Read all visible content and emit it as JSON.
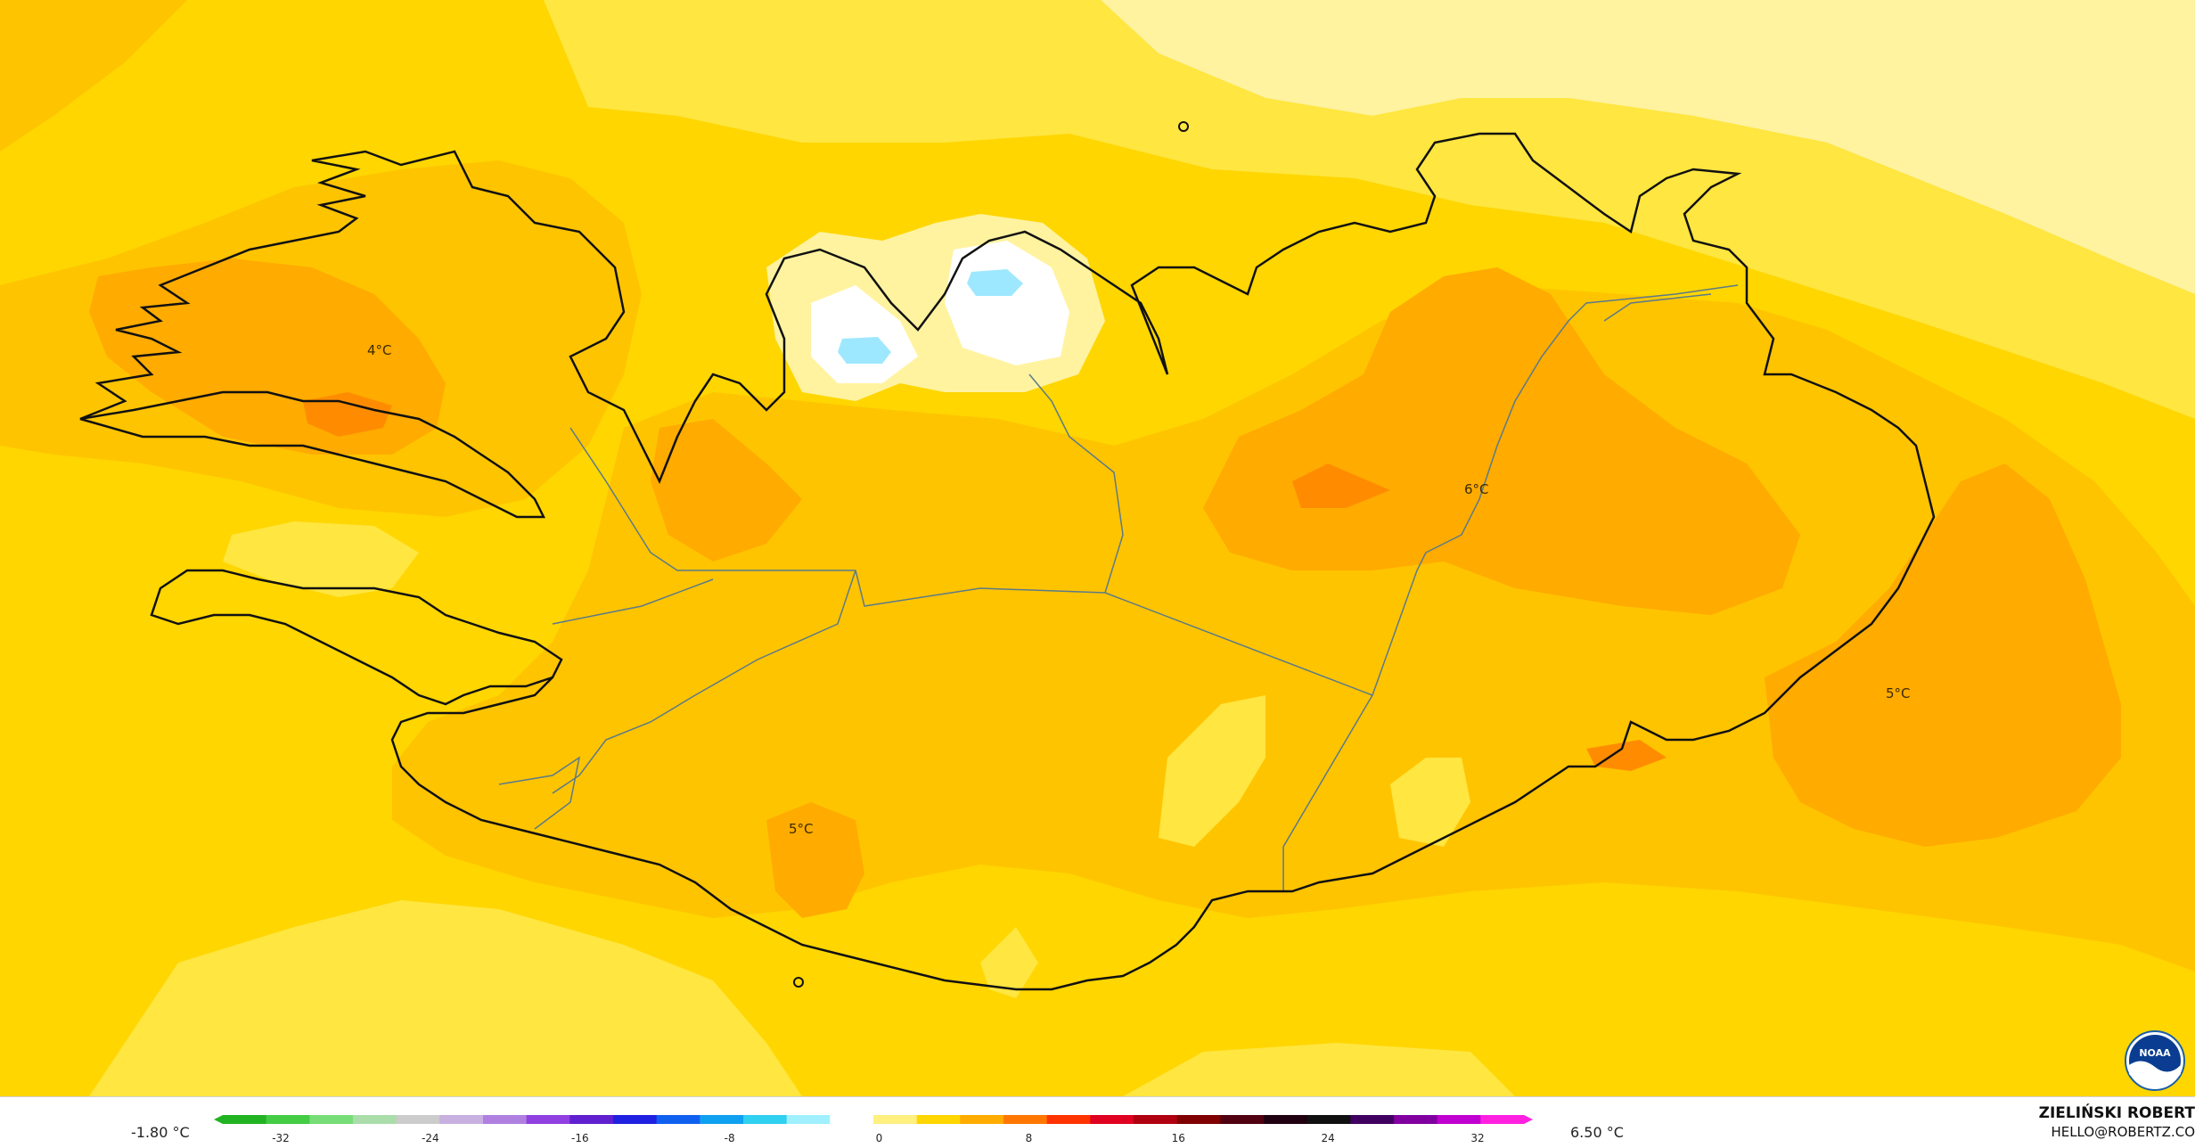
{
  "map": {
    "labels": [
      {
        "text": "4°C"
      },
      {
        "text": "6°C"
      },
      {
        "text": "5°C"
      },
      {
        "text": "5°C"
      }
    ],
    "colors": {
      "sea_base": "#ffd600",
      "warm_1": "#ffc400",
      "warm_2": "#ffab00",
      "warm_3": "#ff8c00",
      "light_1": "#ffe640",
      "light_2": "#fff3a0",
      "cold_ice": "#9ee8ff",
      "coast": "#111111",
      "border": "#5a7a8a"
    }
  },
  "scale": {
    "min_label": "-1.80 °C",
    "max_label": "6.50 °C",
    "ticks": [
      "-32",
      "-24",
      "-16",
      "-8",
      "0",
      "8",
      "16",
      "24",
      "32"
    ],
    "stops": [
      "#22b322",
      "#44cc44",
      "#77dd77",
      "#aaddaa",
      "#cccccc",
      "#c8b0e0",
      "#b080e0",
      "#9040e0",
      "#6020d0",
      "#2020e0",
      "#1060f0",
      "#10a0f0",
      "#30d0f0",
      "#a0f0ff",
      "#ffffff",
      "#fff080",
      "#ffd600",
      "#ffab00",
      "#ff7700",
      "#ff3300",
      "#e00020",
      "#b00010",
      "#800000",
      "#500010",
      "#200010",
      "#101010",
      "#400060",
      "#8000a0",
      "#c000d0",
      "#ff20e0"
    ]
  },
  "credit": {
    "name": "ZIELIŃSKI ROBERT",
    "email": "HELLO@ROBERTZ.CO"
  },
  "logo": {
    "text": "NOAA"
  }
}
